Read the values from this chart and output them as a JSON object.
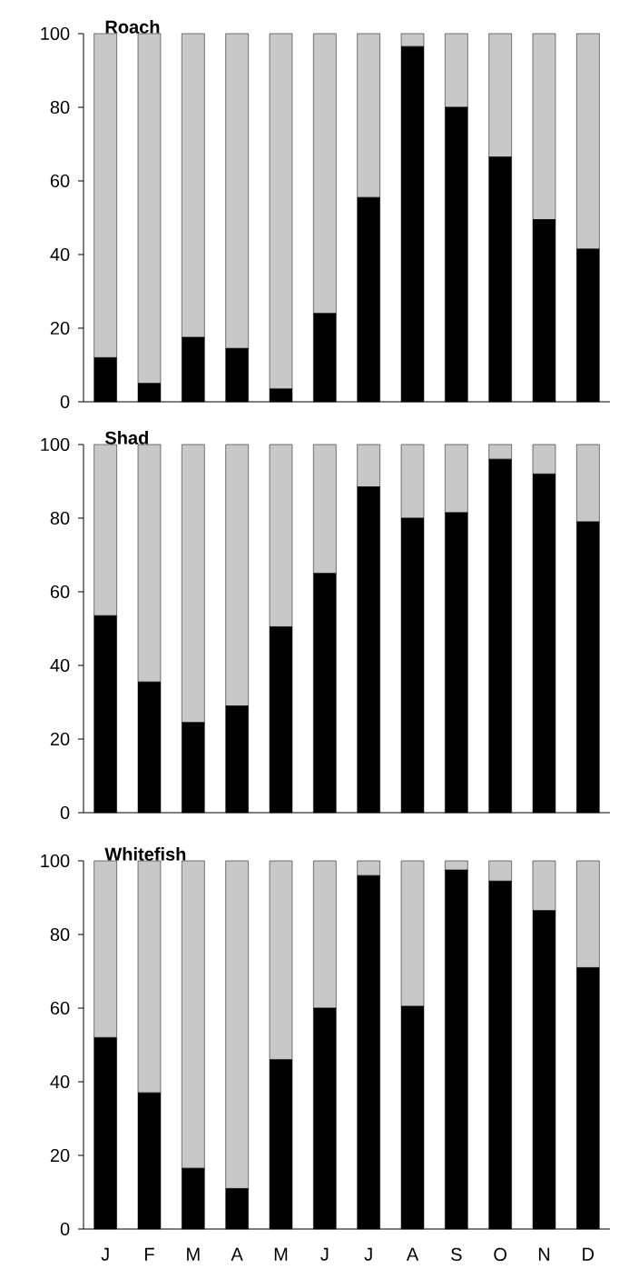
{
  "chart_data": [
    {
      "type": "bar",
      "title": "Roach",
      "categories": [
        null,
        null,
        null,
        null,
        null,
        null,
        null,
        null,
        null,
        null,
        null,
        null
      ],
      "stacked": true,
      "ylim": [
        0,
        100
      ],
      "yticks": [
        0,
        20,
        40,
        60,
        80,
        100
      ],
      "series": [
        {
          "color": "#000000",
          "values": [
            12,
            5,
            17.5,
            14.5,
            3.5,
            24,
            55.5,
            96.5,
            80,
            66.5,
            49.5,
            41.5
          ]
        },
        {
          "color": "#c8c8c8",
          "values": [
            88,
            95,
            82.5,
            85.5,
            96.5,
            76,
            44.5,
            3.5,
            20,
            33.5,
            50.5,
            58.5
          ]
        }
      ]
    },
    {
      "type": "bar",
      "title": "Shad",
      "categories": [
        null,
        null,
        null,
        null,
        null,
        null,
        null,
        null,
        null,
        null,
        null,
        null
      ],
      "stacked": true,
      "ylim": [
        0,
        100
      ],
      "yticks": [
        0,
        20,
        40,
        60,
        80,
        100
      ],
      "series": [
        {
          "color": "#000000",
          "values": [
            53.5,
            35.5,
            24.5,
            29,
            50.5,
            65,
            88.5,
            80,
            81.5,
            96,
            92,
            79
          ]
        },
        {
          "color": "#c8c8c8",
          "values": [
            46.5,
            64.5,
            75.5,
            71,
            49.5,
            35,
            11.5,
            20,
            18.5,
            4,
            8,
            21
          ]
        }
      ]
    },
    {
      "type": "bar",
      "title": "Whitefish",
      "categories": [
        "J",
        "F",
        "M",
        "A",
        "M",
        "J",
        "J",
        "A",
        "S",
        "O",
        "N",
        "D"
      ],
      "stacked": true,
      "ylim": [
        0,
        100
      ],
      "yticks": [
        0,
        20,
        40,
        60,
        80,
        100
      ],
      "series": [
        {
          "color": "#000000",
          "values": [
            52,
            37,
            16.5,
            11,
            46,
            60,
            96,
            60.5,
            97.5,
            94.5,
            86.5,
            71
          ]
        },
        {
          "color": "#c8c8c8",
          "values": [
            48,
            63,
            83.5,
            89,
            54,
            40,
            4,
            39.5,
            2.5,
            5.5,
            13.5,
            29
          ]
        }
      ]
    }
  ]
}
